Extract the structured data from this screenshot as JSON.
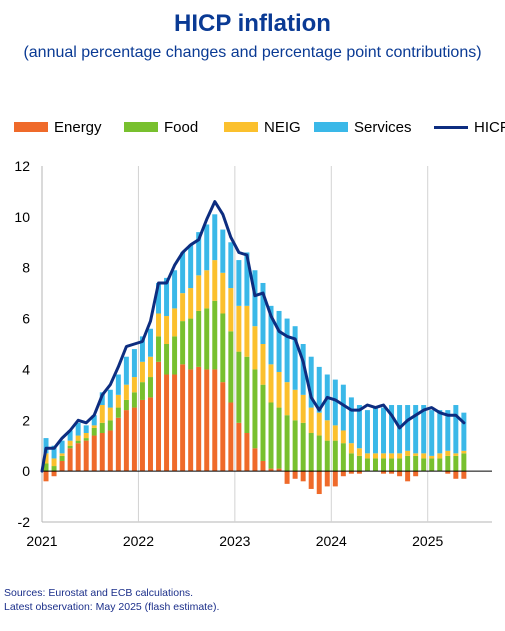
{
  "title": "HICP inflation",
  "subtitle": "(annual percentage changes and percentage point contributions)",
  "legend": [
    {
      "label": "Energy",
      "color": "#ef6a2a",
      "kind": "bar"
    },
    {
      "label": "Food",
      "color": "#78c02e",
      "kind": "bar"
    },
    {
      "label": "NEIG",
      "color": "#fbc02d",
      "kind": "bar"
    },
    {
      "label": "Services",
      "color": "#3ab8e8",
      "kind": "bar"
    },
    {
      "label": "HICP",
      "color": "#0d2d80",
      "kind": "line"
    }
  ],
  "sources": [
    "Sources: Eurostat and ECB calculations.",
    "Latest observation: May 2025 (flash estimate)."
  ],
  "chart_data": {
    "type": "bar",
    "stacked": true,
    "x_start": "2021-01",
    "x_end": "2025-05",
    "frequency": "monthly",
    "x_ticks": [
      "2021",
      "2022",
      "2023",
      "2024",
      "2025"
    ],
    "y_ticks": [
      "-2",
      "0",
      "2",
      "4",
      "6",
      "8",
      "10",
      "12"
    ],
    "ylim": [
      -2,
      12
    ],
    "grid": "vertical lines at year boundaries",
    "legend_position": "top",
    "series": [
      {
        "name": "Energy",
        "color": "#ef6a2a",
        "kind": "bar",
        "values": [
          -0.4,
          -0.2,
          0.4,
          0.9,
          1.1,
          1.2,
          1.4,
          1.5,
          1.6,
          2.1,
          2.4,
          2.5,
          2.8,
          2.9,
          4.3,
          3.8,
          3.8,
          4.2,
          4.0,
          4.1,
          4.0,
          4.0,
          3.5,
          2.7,
          1.9,
          1.5,
          0.9,
          0.4,
          0.1,
          0.1,
          -0.5,
          -0.3,
          -0.4,
          -0.7,
          -0.9,
          -0.6,
          -0.6,
          -0.2,
          -0.1,
          -0.1,
          0.0,
          0.0,
          -0.1,
          -0.1,
          -0.2,
          -0.4,
          -0.2,
          0.0,
          0.0,
          0.0,
          -0.1,
          -0.3,
          -0.3
        ]
      },
      {
        "name": "Food",
        "color": "#78c02e",
        "kind": "bar",
        "values": [
          0.3,
          0.2,
          0.2,
          0.1,
          0.1,
          0.1,
          0.3,
          0.4,
          0.4,
          0.4,
          0.4,
          0.6,
          0.7,
          0.8,
          1.0,
          1.2,
          1.5,
          1.7,
          2.0,
          2.2,
          2.4,
          2.7,
          2.7,
          2.8,
          2.8,
          3.0,
          3.1,
          3.0,
          2.6,
          2.4,
          2.2,
          2.0,
          1.9,
          1.5,
          1.4,
          1.2,
          1.2,
          1.1,
          0.7,
          0.6,
          0.5,
          0.5,
          0.5,
          0.5,
          0.5,
          0.6,
          0.6,
          0.5,
          0.5,
          0.5,
          0.6,
          0.6,
          0.7
        ]
      },
      {
        "name": "NEIG",
        "color": "#fbc02d",
        "kind": "bar",
        "values": [
          0.4,
          0.3,
          0.1,
          0.2,
          0.2,
          0.2,
          0.1,
          0.7,
          0.5,
          0.5,
          0.6,
          0.6,
          0.8,
          0.8,
          0.9,
          1.1,
          1.1,
          1.1,
          1.2,
          1.4,
          1.5,
          1.6,
          1.6,
          1.7,
          1.8,
          2.0,
          1.7,
          1.6,
          1.5,
          1.4,
          1.3,
          1.2,
          1.1,
          1.0,
          0.9,
          0.8,
          0.6,
          0.5,
          0.4,
          0.3,
          0.2,
          0.2,
          0.2,
          0.2,
          0.2,
          0.2,
          0.1,
          0.2,
          0.1,
          0.2,
          0.2,
          0.1,
          0.1
        ]
      },
      {
        "name": "Services",
        "color": "#3ab8e8",
        "kind": "bar",
        "values": [
          0.6,
          0.5,
          0.5,
          0.4,
          0.5,
          0.3,
          0.4,
          0.5,
          0.7,
          0.8,
          1.1,
          1.1,
          1.0,
          1.1,
          1.2,
          1.5,
          1.5,
          1.6,
          1.7,
          1.7,
          1.8,
          1.8,
          1.7,
          1.8,
          1.8,
          2.1,
          2.2,
          2.4,
          2.3,
          2.4,
          2.5,
          2.5,
          2.0,
          2.0,
          1.8,
          1.8,
          1.8,
          1.8,
          1.8,
          1.7,
          1.7,
          1.8,
          1.8,
          1.9,
          1.9,
          1.8,
          1.9,
          1.9,
          1.8,
          1.7,
          1.6,
          1.9,
          1.5
        ]
      },
      {
        "name": "HICP",
        "color": "#0d2d80",
        "kind": "line",
        "values": [
          0.9,
          0.9,
          1.3,
          1.6,
          2.0,
          1.9,
          2.2,
          3.0,
          3.4,
          4.1,
          4.9,
          5.0,
          5.1,
          5.9,
          7.4,
          7.4,
          8.1,
          8.6,
          8.9,
          9.1,
          9.9,
          10.6,
          10.1,
          9.2,
          8.6,
          8.5,
          6.9,
          7.0,
          6.1,
          5.5,
          5.3,
          5.2,
          4.3,
          2.9,
          2.4,
          2.9,
          2.8,
          2.6,
          2.4,
          2.4,
          2.6,
          2.5,
          2.6,
          2.2,
          1.7,
          2.0,
          2.2,
          2.4,
          2.5,
          2.3,
          2.2,
          2.2,
          1.9
        ]
      }
    ]
  }
}
